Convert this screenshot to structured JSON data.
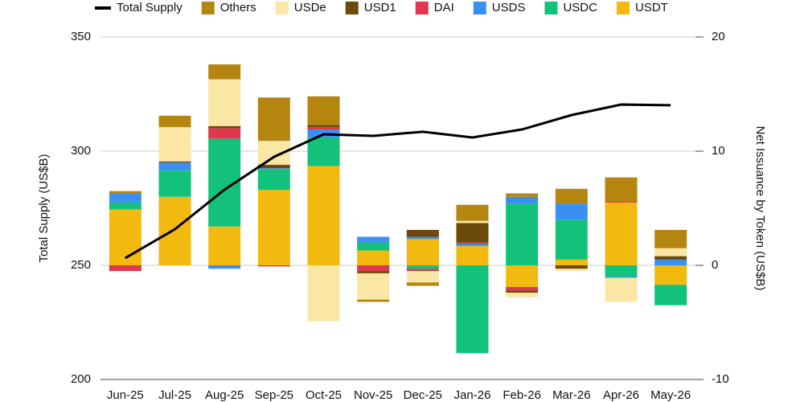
{
  "chart_data": {
    "type": "bar",
    "categories": [
      "Jun-25",
      "Jul-25",
      "Aug-25",
      "Sep-25",
      "Oct-25",
      "Nov-25",
      "Dec-25",
      "Jan-26",
      "Feb-26",
      "Mar-26",
      "Apr-26",
      "May-26"
    ],
    "y_label": "Total Supply (US$B)",
    "y2_label": "Net Issuance by Token (US$B)",
    "ylim": [
      200,
      350
    ],
    "yticks": [
      200,
      250,
      300,
      350
    ],
    "y2lim": [
      -10,
      20
    ],
    "y2ticks": [
      -10,
      0,
      10,
      20
    ],
    "stacked": true,
    "grid": true,
    "legend": "top",
    "series": [
      {
        "name": "Total Supply",
        "type": "line",
        "axis": "y",
        "color": "#000000",
        "values": [
          253.2,
          265.8,
          283.1,
          297.5,
          307.4,
          306.7,
          308.5,
          306.0,
          309.5,
          315.8,
          320.4,
          320.1
        ]
      },
      {
        "name": "Others",
        "type": "bar",
        "axis": "y2",
        "color": "#b5860f",
        "values": [
          0.2,
          1.0,
          1.3,
          3.8,
          2.5,
          -0.2,
          -0.3,
          1.4,
          0.3,
          1.3,
          2.1,
          1.6
        ]
      },
      {
        "name": "USDe",
        "type": "bar",
        "axis": "y2",
        "color": "#fae7a5",
        "values": [
          0,
          3.0,
          4.1,
          2.1,
          -4.9,
          -2.3,
          -1.0,
          0.2,
          -0.4,
          -0.2,
          -2.1,
          0.7
        ]
      },
      {
        "name": "USD1",
        "type": "bar",
        "axis": "y2",
        "color": "#6b4a0c",
        "values": [
          0,
          0.1,
          0.2,
          0.3,
          0.2,
          -0.2,
          0.6,
          1.7,
          -0.2,
          -0.3,
          0,
          0.3
        ]
      },
      {
        "name": "DAI",
        "type": "bar",
        "axis": "y2",
        "color": "#e0364e",
        "values": [
          -0.5,
          0,
          0.9,
          -0.1,
          0.2,
          -0.5,
          -0.2,
          0.1,
          -0.3,
          0,
          0.1,
          0
        ]
      },
      {
        "name": "USDS",
        "type": "bar",
        "axis": "y2",
        "color": "#3a8ff2",
        "values": [
          0.8,
          0.7,
          -0.3,
          0.1,
          0.7,
          0.5,
          0.2,
          0.2,
          0.6,
          1.4,
          -0.1,
          0.5
        ]
      },
      {
        "name": "USDC",
        "type": "bar",
        "axis": "y2",
        "color": "#12c27a",
        "values": [
          0.6,
          2.3,
          7.7,
          1.8,
          2.5,
          0.7,
          -0.3,
          -7.7,
          5.4,
          3.5,
          -1.0,
          -1.8
        ]
      },
      {
        "name": "USDT",
        "type": "bar",
        "axis": "y2",
        "color": "#f2b90f",
        "values": [
          4.9,
          6.0,
          3.4,
          6.6,
          8.7,
          1.3,
          2.3,
          1.7,
          -1.9,
          0.5,
          5.5,
          -1.7
        ]
      }
    ]
  }
}
